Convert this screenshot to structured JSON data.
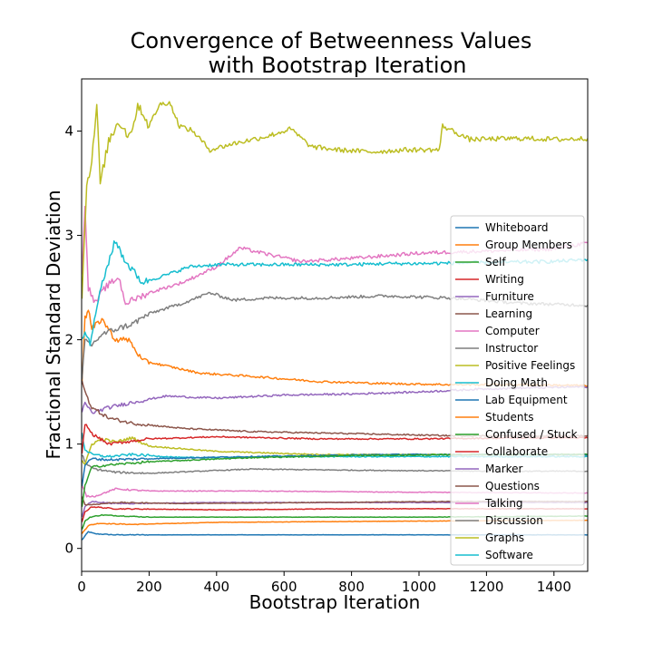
{
  "chart_data": {
    "type": "line",
    "title_line1": "Convergence of Betweenness Values",
    "title_line2": "with Bootstrap Iteration",
    "xlabel": "Bootstrap Iteration",
    "ylabel": "Fractional Standard Deviation",
    "xlim": [
      0,
      1500
    ],
    "ylim": [
      -0.22,
      4.5
    ],
    "xticks": [
      0,
      200,
      400,
      600,
      800,
      1000,
      1200,
      1400
    ],
    "yticks": [
      0,
      1,
      2,
      3,
      4
    ],
    "legend_position": "center-right",
    "series": [
      {
        "name": "Whiteboard",
        "color": "#1f77b4",
        "points": [
          [
            1,
            0.08
          ],
          [
            10,
            0.12
          ],
          [
            20,
            0.16
          ],
          [
            40,
            0.14
          ],
          [
            100,
            0.13
          ],
          [
            300,
            0.13
          ],
          [
            800,
            0.13
          ],
          [
            1500,
            0.13
          ]
        ]
      },
      {
        "name": "Group Members",
        "color": "#ff7f0e",
        "points": [
          [
            1,
            0.14
          ],
          [
            10,
            0.18
          ],
          [
            20,
            0.22
          ],
          [
            50,
            0.24
          ],
          [
            150,
            0.23
          ],
          [
            400,
            0.25
          ],
          [
            900,
            0.26
          ],
          [
            1500,
            0.27
          ]
        ]
      },
      {
        "name": "Self",
        "color": "#2ca02c",
        "points": [
          [
            1,
            0.18
          ],
          [
            10,
            0.26
          ],
          [
            25,
            0.3
          ],
          [
            60,
            0.32
          ],
          [
            200,
            0.3
          ],
          [
            600,
            0.3
          ],
          [
            1000,
            0.3
          ],
          [
            1500,
            0.31
          ]
        ]
      },
      {
        "name": "Writing",
        "color": "#d62728",
        "points": [
          [
            1,
            0.25
          ],
          [
            10,
            0.35
          ],
          [
            30,
            0.4
          ],
          [
            100,
            0.38
          ],
          [
            400,
            0.37
          ],
          [
            800,
            0.38
          ],
          [
            1200,
            0.38
          ],
          [
            1500,
            0.38
          ]
        ]
      },
      {
        "name": "Furniture",
        "color": "#9467bd",
        "points": [
          [
            1,
            0.3
          ],
          [
            10,
            0.4
          ],
          [
            30,
            0.45
          ],
          [
            100,
            0.43
          ],
          [
            400,
            0.44
          ],
          [
            900,
            0.44
          ],
          [
            1500,
            0.44
          ]
        ]
      },
      {
        "name": "Learning",
        "color": "#8c564b",
        "points": [
          [
            1,
            0.5
          ],
          [
            10,
            0.42
          ],
          [
            30,
            0.42
          ],
          [
            100,
            0.44
          ],
          [
            300,
            0.43
          ],
          [
            700,
            0.44
          ],
          [
            1100,
            0.45
          ],
          [
            1500,
            0.45
          ]
        ]
      },
      {
        "name": "Computer",
        "color": "#e377c2",
        "points": [
          [
            1,
            0.6
          ],
          [
            15,
            0.5
          ],
          [
            40,
            0.5
          ],
          [
            100,
            0.57
          ],
          [
            200,
            0.55
          ],
          [
            500,
            0.55
          ],
          [
            900,
            0.54
          ],
          [
            1500,
            0.53
          ]
        ]
      },
      {
        "name": "Instructor",
        "color": "#7f7f7f",
        "points": [
          [
            1,
            0.9
          ],
          [
            15,
            0.8
          ],
          [
            40,
            0.76
          ],
          [
            100,
            0.73
          ],
          [
            200,
            0.72
          ],
          [
            500,
            0.76
          ],
          [
            800,
            0.75
          ],
          [
            1200,
            0.74
          ],
          [
            1500,
            0.74
          ]
        ]
      },
      {
        "name": "Positive Feelings",
        "color": "#bcbd22",
        "points": [
          [
            1,
            0.85
          ],
          [
            10,
            0.8
          ],
          [
            30,
            1.0
          ],
          [
            60,
            1.05
          ],
          [
            100,
            1.02
          ],
          [
            150,
            1.06
          ],
          [
            200,
            0.98
          ],
          [
            400,
            0.93
          ],
          [
            700,
            0.9
          ],
          [
            1000,
            0.9
          ],
          [
            1500,
            0.9
          ]
        ]
      },
      {
        "name": "Doing Math",
        "color": "#17becf",
        "points": [
          [
            1,
            1.1
          ],
          [
            10,
            0.95
          ],
          [
            30,
            0.9
          ],
          [
            80,
            0.88
          ],
          [
            150,
            0.9
          ],
          [
            300,
            0.87
          ],
          [
            600,
            0.88
          ],
          [
            1000,
            0.88
          ],
          [
            1500,
            0.88
          ]
        ]
      },
      {
        "name": "Lab Equipment",
        "color": "#1f77b4",
        "points": [
          [
            1,
            0.6
          ],
          [
            10,
            0.8
          ],
          [
            30,
            0.86
          ],
          [
            80,
            0.85
          ],
          [
            200,
            0.86
          ],
          [
            500,
            0.88
          ],
          [
            900,
            0.9
          ],
          [
            1500,
            0.9
          ]
        ]
      },
      {
        "name": "Students",
        "color": "#ff7f0e",
        "points": [
          [
            1,
            1.6
          ],
          [
            10,
            2.2
          ],
          [
            20,
            2.3
          ],
          [
            30,
            2.1
          ],
          [
            60,
            2.2
          ],
          [
            100,
            2.0
          ],
          [
            140,
            2.0
          ],
          [
            180,
            1.8
          ],
          [
            250,
            1.75
          ],
          [
            350,
            1.68
          ],
          [
            500,
            1.65
          ],
          [
            700,
            1.6
          ],
          [
            900,
            1.58
          ],
          [
            1100,
            1.57
          ],
          [
            1300,
            1.57
          ],
          [
            1500,
            1.56
          ]
        ]
      },
      {
        "name": "Confused / Stuck",
        "color": "#2ca02c",
        "points": [
          [
            1,
            0.4
          ],
          [
            10,
            0.6
          ],
          [
            30,
            0.78
          ],
          [
            80,
            0.8
          ],
          [
            200,
            0.83
          ],
          [
            500,
            0.87
          ],
          [
            800,
            0.89
          ],
          [
            1200,
            0.9
          ],
          [
            1500,
            0.9
          ]
        ]
      },
      {
        "name": "Collaborate",
        "color": "#d62728",
        "points": [
          [
            1,
            0.9
          ],
          [
            10,
            1.2
          ],
          [
            30,
            1.1
          ],
          [
            80,
            1.0
          ],
          [
            200,
            1.05
          ],
          [
            400,
            1.07
          ],
          [
            700,
            1.05
          ],
          [
            1000,
            1.05
          ],
          [
            1300,
            1.06
          ],
          [
            1500,
            1.06
          ]
        ]
      },
      {
        "name": "Marker",
        "color": "#9467bd",
        "points": [
          [
            1,
            1.3
          ],
          [
            10,
            1.4
          ],
          [
            30,
            1.3
          ],
          [
            80,
            1.35
          ],
          [
            150,
            1.4
          ],
          [
            250,
            1.46
          ],
          [
            400,
            1.44
          ],
          [
            600,
            1.47
          ],
          [
            800,
            1.48
          ],
          [
            1000,
            1.5
          ],
          [
            1200,
            1.53
          ],
          [
            1500,
            1.55
          ]
        ]
      },
      {
        "name": "Questions",
        "color": "#8c564b",
        "points": [
          [
            1,
            1.6
          ],
          [
            10,
            1.5
          ],
          [
            30,
            1.35
          ],
          [
            80,
            1.25
          ],
          [
            150,
            1.2
          ],
          [
            300,
            1.15
          ],
          [
            500,
            1.12
          ],
          [
            800,
            1.1
          ],
          [
            1100,
            1.08
          ],
          [
            1500,
            1.08
          ]
        ]
      },
      {
        "name": "Talking",
        "color": "#e377c2",
        "points": [
          [
            1,
            2.6
          ],
          [
            10,
            3.3
          ],
          [
            20,
            2.5
          ],
          [
            40,
            2.35
          ],
          [
            70,
            2.5
          ],
          [
            110,
            2.6
          ],
          [
            130,
            2.35
          ],
          [
            200,
            2.45
          ],
          [
            300,
            2.55
          ],
          [
            400,
            2.7
          ],
          [
            470,
            2.88
          ],
          [
            550,
            2.82
          ],
          [
            650,
            2.75
          ],
          [
            800,
            2.78
          ],
          [
            1000,
            2.83
          ],
          [
            1200,
            2.85
          ],
          [
            1400,
            2.87
          ],
          [
            1500,
            2.93
          ]
        ]
      },
      {
        "name": "Discussion",
        "color": "#7f7f7f",
        "points": [
          [
            1,
            1.6
          ],
          [
            10,
            2.0
          ],
          [
            30,
            1.95
          ],
          [
            60,
            2.05
          ],
          [
            100,
            2.1
          ],
          [
            150,
            2.15
          ],
          [
            200,
            2.25
          ],
          [
            300,
            2.35
          ],
          [
            380,
            2.45
          ],
          [
            450,
            2.38
          ],
          [
            550,
            2.4
          ],
          [
            700,
            2.4
          ],
          [
            900,
            2.42
          ],
          [
            1100,
            2.4
          ],
          [
            1300,
            2.35
          ],
          [
            1500,
            2.33
          ]
        ]
      },
      {
        "name": "Graphs",
        "color": "#bcbd22",
        "points": [
          [
            1,
            2.4
          ],
          [
            15,
            3.5
          ],
          [
            30,
            3.7
          ],
          [
            45,
            4.25
          ],
          [
            55,
            3.5
          ],
          [
            80,
            3.9
          ],
          [
            110,
            4.1
          ],
          [
            140,
            3.95
          ],
          [
            170,
            4.25
          ],
          [
            200,
            4.05
          ],
          [
            230,
            4.25
          ],
          [
            260,
            4.28
          ],
          [
            290,
            4.05
          ],
          [
            330,
            4.0
          ],
          [
            380,
            3.82
          ],
          [
            450,
            3.88
          ],
          [
            550,
            3.95
          ],
          [
            620,
            4.02
          ],
          [
            680,
            3.85
          ],
          [
            760,
            3.82
          ],
          [
            860,
            3.8
          ],
          [
            960,
            3.82
          ],
          [
            1060,
            3.82
          ],
          [
            1070,
            4.05
          ],
          [
            1150,
            3.92
          ],
          [
            1300,
            3.93
          ],
          [
            1420,
            3.92
          ],
          [
            1500,
            3.93
          ]
        ]
      },
      {
        "name": "Software",
        "color": "#17becf",
        "points": [
          [
            1,
            2.0
          ],
          [
            10,
            2.1
          ],
          [
            25,
            1.95
          ],
          [
            50,
            2.4
          ],
          [
            80,
            2.75
          ],
          [
            100,
            2.95
          ],
          [
            130,
            2.75
          ],
          [
            180,
            2.55
          ],
          [
            250,
            2.62
          ],
          [
            320,
            2.7
          ],
          [
            400,
            2.72
          ],
          [
            500,
            2.72
          ],
          [
            600,
            2.72
          ],
          [
            700,
            2.72
          ],
          [
            800,
            2.72
          ],
          [
            900,
            2.73
          ],
          [
            1000,
            2.73
          ],
          [
            1200,
            2.74
          ],
          [
            1400,
            2.75
          ],
          [
            1500,
            2.77
          ]
        ]
      }
    ]
  }
}
